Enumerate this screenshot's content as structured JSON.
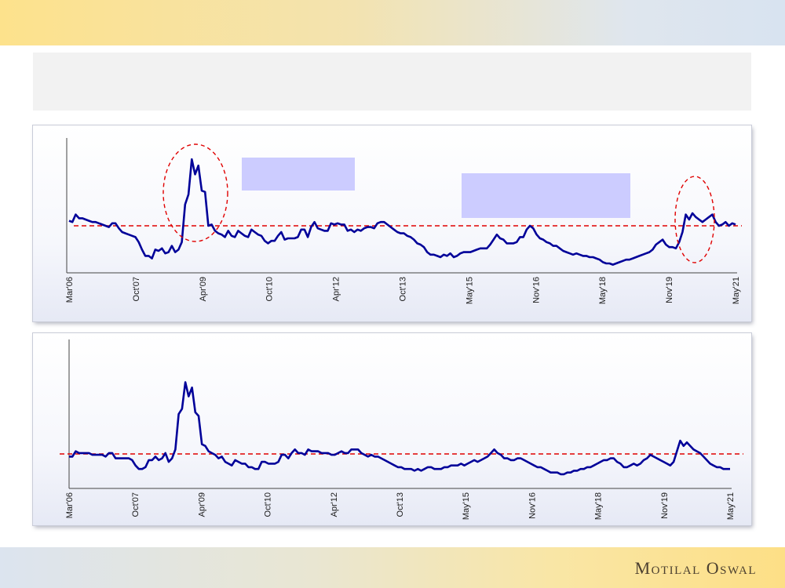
{
  "brand": {
    "logo_text": "Motilal Oswal"
  },
  "colors": {
    "series": "#000099",
    "average_line": "#e00000",
    "highlight": "#e00000",
    "callout": "#ccccff"
  },
  "chart_data": [
    {
      "type": "line",
      "title": "",
      "xlabel": "",
      "ylabel": "",
      "x_tick_labels": [
        "Mar'06",
        "Oct'07",
        "Apr'09",
        "Oct'10",
        "Apr'12",
        "Oct'13",
        "May'15",
        "Nov'16",
        "May'18",
        "Nov'19",
        "May'21"
      ],
      "y_axis_labels": "none",
      "grid": false,
      "reference_line": {
        "style": "dashed",
        "color": "#e00000",
        "label": "",
        "value": 35
      },
      "highlights": [
        "ellipse around Apr'09 peak",
        "ellipse around 2020 peak"
      ],
      "series": [
        {
          "values": [
            39,
            38,
            44,
            41,
            41,
            40,
            39,
            38,
            38,
            37,
            36,
            35,
            34,
            37,
            37,
            33,
            30,
            29,
            28,
            27,
            26,
            22,
            16,
            11,
            11,
            9,
            16,
            15,
            17,
            13,
            14,
            19,
            14,
            16,
            22,
            52,
            60,
            88,
            76,
            83,
            63,
            62,
            35,
            36,
            31,
            29,
            28,
            26,
            31,
            27,
            26,
            31,
            29,
            27,
            26,
            32,
            30,
            28,
            27,
            23,
            21,
            23,
            23,
            27,
            30,
            24,
            25,
            25,
            25,
            26,
            32,
            32,
            26,
            34,
            38,
            33,
            32,
            31,
            31,
            37,
            36,
            37,
            36,
            36,
            31,
            32,
            30,
            32,
            31,
            33,
            34,
            34,
            33,
            37,
            38,
            38,
            36,
            34,
            32,
            30,
            29,
            29,
            27,
            26,
            24,
            21,
            20,
            18,
            14,
            12,
            12,
            11,
            10,
            12,
            11,
            13,
            10,
            11,
            13,
            14,
            14,
            14,
            15,
            16,
            17,
            17,
            17,
            20,
            24,
            28,
            25,
            24,
            21,
            21,
            21,
            22,
            26,
            26,
            32,
            35,
            33,
            28,
            25,
            24,
            22,
            21,
            19,
            19,
            17,
            15,
            14,
            13,
            12,
            13,
            12,
            11,
            11,
            10,
            10,
            9,
            8,
            6,
            5,
            5,
            4,
            5,
            6,
            7,
            8,
            8,
            9,
            10,
            11,
            12,
            13,
            14,
            16,
            20,
            22,
            24,
            20,
            18,
            18,
            17,
            22,
            30,
            44,
            40,
            45,
            42,
            40,
            38,
            40,
            42,
            44,
            38,
            35,
            36,
            38,
            35,
            37,
            36
          ],
          "approx_range": [
            0,
            90
          ]
        }
      ]
    },
    {
      "type": "line",
      "title": "",
      "xlabel": "",
      "ylabel": "",
      "x_tick_labels": [
        "Mar'06",
        "Oct'07",
        "Apr'09",
        "Oct'10",
        "Apr'12",
        "Oct'13",
        "May'15",
        "Nov'16",
        "May'18",
        "Nov'19",
        "May'21"
      ],
      "y_axis_labels": "none",
      "grid": false,
      "reference_line": {
        "style": "dashed",
        "color": "#e00000",
        "label": "",
        "value": 19.5
      },
      "series": [
        {
          "values": [
            18,
            18,
            21,
            20,
            20,
            20,
            20,
            19,
            19,
            19,
            19,
            18,
            20,
            20,
            17,
            17,
            17,
            17,
            17,
            16,
            13,
            11,
            11,
            12,
            16,
            16,
            18,
            16,
            17,
            20,
            15,
            17,
            22,
            42,
            45,
            60,
            52,
            57,
            43,
            41,
            25,
            24,
            21,
            20,
            19,
            17,
            18,
            15,
            14,
            13,
            16,
            15,
            14,
            14,
            12,
            12,
            11,
            11,
            15,
            15,
            14,
            14,
            14,
            15,
            19,
            19,
            17,
            20,
            22,
            20,
            20,
            19,
            22,
            21,
            21,
            21,
            20,
            20,
            20,
            19,
            19,
            20,
            21,
            20,
            20,
            22,
            22,
            22,
            20,
            19,
            18,
            19,
            18,
            18,
            17,
            16,
            15,
            14,
            13,
            12,
            12,
            11,
            11,
            11,
            10,
            11,
            10,
            11,
            12,
            12,
            11,
            11,
            11,
            12,
            12,
            13,
            13,
            13,
            14,
            13,
            14,
            15,
            16,
            15,
            16,
            17,
            18,
            20,
            22,
            20,
            19,
            17,
            17,
            16,
            16,
            17,
            17,
            16,
            15,
            14,
            13,
            12,
            12,
            11,
            10,
            9,
            9,
            9,
            8,
            8,
            9,
            9,
            10,
            10,
            11,
            11,
            12,
            12,
            13,
            14,
            15,
            16,
            16,
            17,
            17,
            15,
            14,
            12,
            12,
            13,
            14,
            13,
            14,
            16,
            17,
            19,
            18,
            17,
            16,
            15,
            14,
            13,
            15,
            21,
            27,
            24,
            26,
            24,
            22,
            21,
            20,
            18,
            16,
            14,
            13,
            12,
            12,
            11,
            11,
            11
          ],
          "approx_range": [
            0,
            70
          ]
        }
      ]
    }
  ]
}
